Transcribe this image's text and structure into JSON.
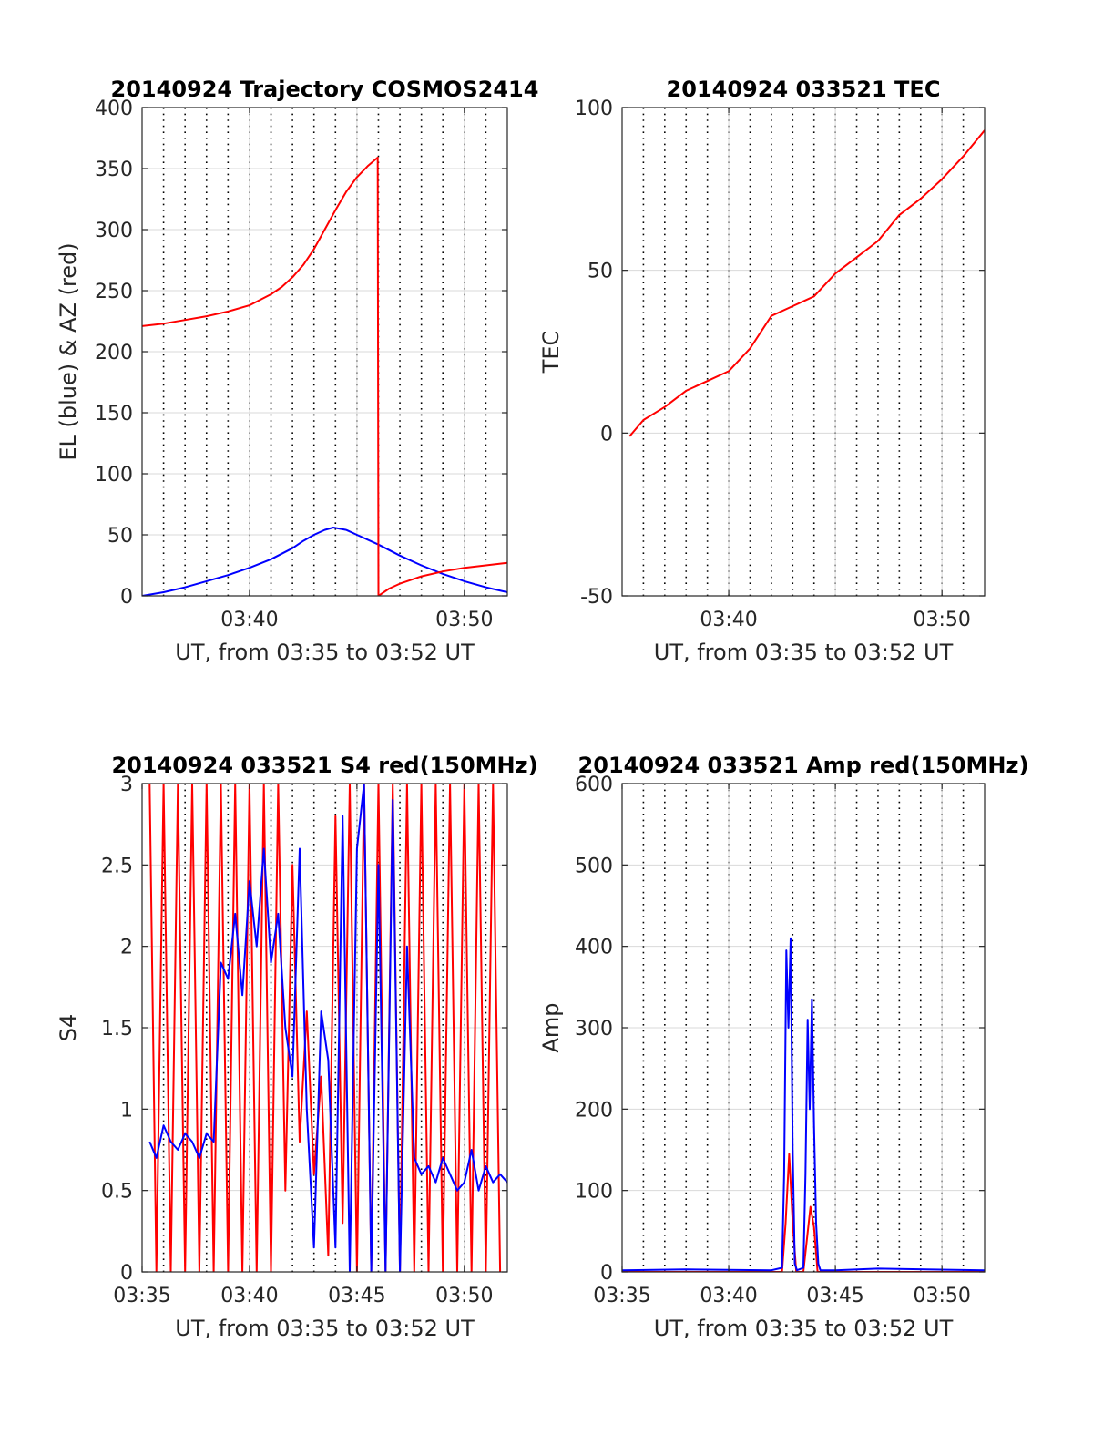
{
  "colors": {
    "el": "#0000ff",
    "az": "#ff0000",
    "tec": "#ff0000",
    "s4_red": "#ff0000",
    "s4_blue": "#0000ff",
    "amp_red": "#ff0000",
    "amp_blue": "#0000ff",
    "grid": "#d9d9d9",
    "minor_grid": "#000000",
    "axes": "#262626"
  },
  "chart_data": [
    {
      "type": "line",
      "title": "20140924 Trajectory COSMOS2414",
      "xlabel": "UT, from 03:35 to 03:52 UT",
      "ylabel": "EL (blue) & AZ (red)",
      "xlim": [
        "03:35",
        "03:52"
      ],
      "ylim": [
        0,
        400
      ],
      "yticks": [
        0,
        50,
        100,
        150,
        200,
        250,
        300,
        350,
        400
      ],
      "xticks": [
        "03:40",
        "03:50"
      ],
      "series": [
        {
          "key": "el",
          "x": [
            "03:35:00",
            "03:36:00",
            "03:37:00",
            "03:38:00",
            "03:39:00",
            "03:40:00",
            "03:41:00",
            "03:42:00",
            "03:42:30",
            "03:43:00",
            "03:43:30",
            "03:43:54",
            "03:44:30",
            "03:45:00",
            "03:46:00",
            "03:47:00",
            "03:48:00",
            "03:49:00",
            "03:50:00",
            "03:51:00",
            "03:52:00"
          ],
          "values": [
            0,
            3,
            7,
            12,
            17,
            23,
            30,
            39,
            45,
            50,
            54,
            56,
            54,
            50,
            42,
            33,
            25,
            18,
            12,
            7,
            3
          ]
        },
        {
          "key": "az",
          "x": [
            "03:35:00",
            "03:36:00",
            "03:37:00",
            "03:38:00",
            "03:39:00",
            "03:40:00",
            "03:41:00",
            "03:41:30",
            "03:42:00",
            "03:42:30",
            "03:43:00",
            "03:43:30",
            "03:44:00",
            "03:44:30",
            "03:45:00",
            "03:45:30",
            "03:45:58",
            "03:46:00",
            "03:46:30",
            "03:47:00",
            "03:48:00",
            "03:49:00",
            "03:50:00",
            "03:51:00",
            "03:52:00"
          ],
          "values": [
            221,
            223,
            226,
            229,
            233,
            238,
            247,
            253,
            261,
            271,
            284,
            300,
            316,
            331,
            343,
            352,
            359,
            0,
            6,
            10,
            16,
            20,
            23,
            25,
            27
          ]
        }
      ]
    },
    {
      "type": "line",
      "title": "20140924 033521 TEC",
      "xlabel": "UT, from 03:35 to 03:52 UT",
      "ylabel": "TEC",
      "xlim": [
        "03:35",
        "03:52"
      ],
      "ylim": [
        -50,
        100
      ],
      "yticks": [
        -50,
        0,
        50,
        100
      ],
      "xticks": [
        "03:40",
        "03:50"
      ],
      "series": [
        {
          "key": "tec",
          "x": [
            "03:35:21",
            "03:36:00",
            "03:37:00",
            "03:38:00",
            "03:39:00",
            "03:40:00",
            "03:41:00",
            "03:42:00",
            "03:43:00",
            "03:44:00",
            "03:45:00",
            "03:46:00",
            "03:47:00",
            "03:48:00",
            "03:49:00",
            "03:50:00",
            "03:51:00",
            "03:52:00"
          ],
          "values": [
            -1,
            4,
            8,
            13,
            16,
            19,
            26,
            36,
            39,
            42,
            49,
            54,
            59,
            67,
            72,
            78,
            85,
            93
          ]
        }
      ]
    },
    {
      "type": "line",
      "title": "20140924 033521 S4 red(150MHz)",
      "xlabel": "UT, from 03:35 to 03:52 UT",
      "ylabel": "S4",
      "xlim": [
        "03:35",
        "03:52"
      ],
      "ylim": [
        0,
        3
      ],
      "yticks": [
        0,
        0.5,
        1,
        1.5,
        2,
        2.5,
        3
      ],
      "xticks": [
        "03:35",
        "03:40",
        "03:45",
        "03:50"
      ],
      "series": [
        {
          "key": "s4_red",
          "x": [
            "03:35:21",
            "03:35:40",
            "03:36:00",
            "03:36:20",
            "03:36:40",
            "03:37:00",
            "03:37:20",
            "03:37:40",
            "03:38:00",
            "03:38:20",
            "03:38:40",
            "03:39:00",
            "03:39:20",
            "03:39:40",
            "03:40:00",
            "03:40:20",
            "03:40:40",
            "03:41:00",
            "03:41:20",
            "03:41:40",
            "03:42:00",
            "03:42:20",
            "03:42:40",
            "03:43:00",
            "03:43:20",
            "03:43:40",
            "03:44:00",
            "03:44:20",
            "03:44:40",
            "03:45:00",
            "03:45:20",
            "03:45:40",
            "03:46:00",
            "03:46:20",
            "03:46:40",
            "03:47:00",
            "03:47:20",
            "03:47:40",
            "03:48:00",
            "03:48:20",
            "03:48:40",
            "03:49:00",
            "03:49:20",
            "03:49:40",
            "03:50:00",
            "03:50:20",
            "03:50:40",
            "03:51:00",
            "03:51:20",
            "03:51:40"
          ],
          "values": [
            3,
            0,
            3,
            0,
            3,
            0,
            3,
            0,
            3,
            0,
            3,
            0,
            3,
            0,
            3,
            0,
            3,
            0,
            3,
            0.5,
            2.5,
            0.8,
            1.6,
            0.6,
            1.2,
            0.1,
            2.8,
            0.3,
            3,
            0,
            3,
            0,
            3,
            0,
            3,
            0,
            3,
            0,
            3,
            0,
            3,
            0,
            3,
            0,
            3,
            0,
            3,
            0,
            3,
            0
          ]
        },
        {
          "key": "s4_blue",
          "x": [
            "03:35:21",
            "03:35:40",
            "03:36:00",
            "03:36:20",
            "03:36:40",
            "03:37:00",
            "03:37:20",
            "03:37:40",
            "03:38:00",
            "03:38:20",
            "03:38:40",
            "03:39:00",
            "03:39:20",
            "03:39:40",
            "03:40:00",
            "03:40:20",
            "03:40:40",
            "03:41:00",
            "03:41:20",
            "03:41:40",
            "03:42:00",
            "03:42:20",
            "03:42:40",
            "03:43:00",
            "03:43:20",
            "03:43:40",
            "03:44:00",
            "03:44:20",
            "03:44:40",
            "03:45:00",
            "03:45:20",
            "03:45:40",
            "03:46:00",
            "03:46:20",
            "03:46:40",
            "03:47:00",
            "03:47:20",
            "03:47:40",
            "03:48:00",
            "03:48:20",
            "03:48:40",
            "03:49:00",
            "03:49:20",
            "03:49:40",
            "03:50:00",
            "03:50:20",
            "03:50:40",
            "03:51:00",
            "03:51:20",
            "03:51:40",
            "03:52:00"
          ],
          "values": [
            0.8,
            0.7,
            0.9,
            0.8,
            0.75,
            0.85,
            0.8,
            0.7,
            0.85,
            0.8,
            1.9,
            1.8,
            2.2,
            1.7,
            2.4,
            2.0,
            2.6,
            1.9,
            2.2,
            1.5,
            1.2,
            2.6,
            1.0,
            0.15,
            1.6,
            1.3,
            0.15,
            2.8,
            0.0,
            2.6,
            3.0,
            0.0,
            2.5,
            0.0,
            2.9,
            0.0,
            2.0,
            0.7,
            0.6,
            0.65,
            0.55,
            0.7,
            0.6,
            0.5,
            0.55,
            0.75,
            0.5,
            0.65,
            0.55,
            0.6,
            0.55
          ]
        }
      ]
    },
    {
      "type": "line",
      "title": "20140924 033521 Amp red(150MHz)",
      "xlabel": "UT, from 03:35 to 03:52 UT",
      "ylabel": "Amp",
      "xlim": [
        "03:35",
        "03:52"
      ],
      "ylim": [
        0,
        600
      ],
      "yticks": [
        0,
        100,
        200,
        300,
        400,
        500,
        600
      ],
      "xticks": [
        "03:35",
        "03:40",
        "03:45",
        "03:50"
      ],
      "series": [
        {
          "key": "amp_red",
          "x": [
            "03:35:00",
            "03:42:00",
            "03:42:30",
            "03:42:40",
            "03:42:50",
            "03:43:00",
            "03:43:10",
            "03:43:30",
            "03:43:40",
            "03:43:50",
            "03:44:00",
            "03:44:10",
            "03:44:20",
            "03:45:00",
            "03:52:00"
          ],
          "values": [
            0,
            0,
            0,
            60,
            145,
            60,
            0,
            0,
            40,
            80,
            55,
            0,
            0,
            0,
            0
          ]
        },
        {
          "key": "amp_blue",
          "x": [
            "03:35:00",
            "03:38:00",
            "03:42:00",
            "03:42:30",
            "03:42:36",
            "03:42:42",
            "03:42:48",
            "03:42:54",
            "03:43:00",
            "03:43:06",
            "03:43:12",
            "03:43:30",
            "03:43:36",
            "03:43:42",
            "03:43:48",
            "03:43:54",
            "03:44:00",
            "03:44:06",
            "03:44:12",
            "03:44:18",
            "03:45:00",
            "03:47:00",
            "03:52:00"
          ],
          "values": [
            2,
            3,
            2,
            5,
            120,
            395,
            300,
            410,
            150,
            10,
            2,
            5,
            120,
            310,
            200,
            335,
            180,
            60,
            10,
            2,
            2,
            4,
            2
          ]
        }
      ]
    }
  ]
}
